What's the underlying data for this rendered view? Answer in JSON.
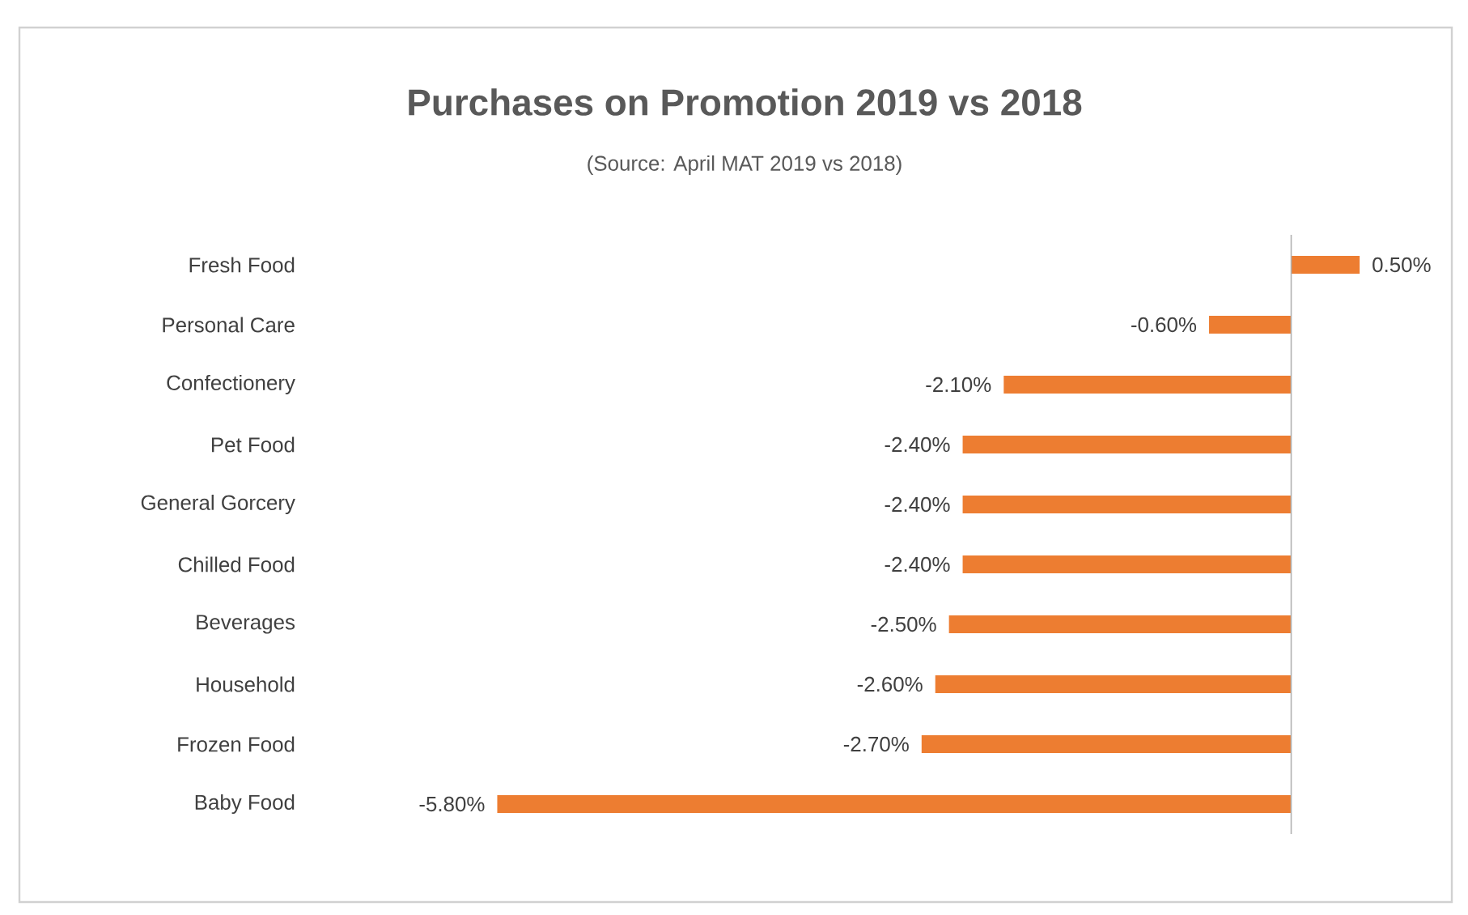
{
  "chart_data": {
    "type": "bar",
    "orientation": "horizontal",
    "title": "Purchases on Promotion 2019 vs 2018",
    "subtitle": "(Source: April MAT 2019 vs 2018)",
    "categories": [
      "Fresh Food",
      "Personal Care",
      "Confectionery",
      "Pet Food",
      "General Gorcery",
      "Chilled Food",
      "Beverages",
      "Household",
      "Frozen Food",
      "Baby Food"
    ],
    "values": [
      0.5,
      -0.6,
      -2.1,
      -2.4,
      -2.4,
      -2.4,
      -2.5,
      -2.6,
      -2.7,
      -5.8
    ],
    "value_labels": [
      "0.50%",
      "-0.60%",
      "-2.10%",
      "-2.40%",
      "-2.40%",
      "-2.40%",
      "-2.50%",
      "-2.60%",
      "-2.70%",
      "-5.80%"
    ],
    "color": "#ed7d31"
  }
}
